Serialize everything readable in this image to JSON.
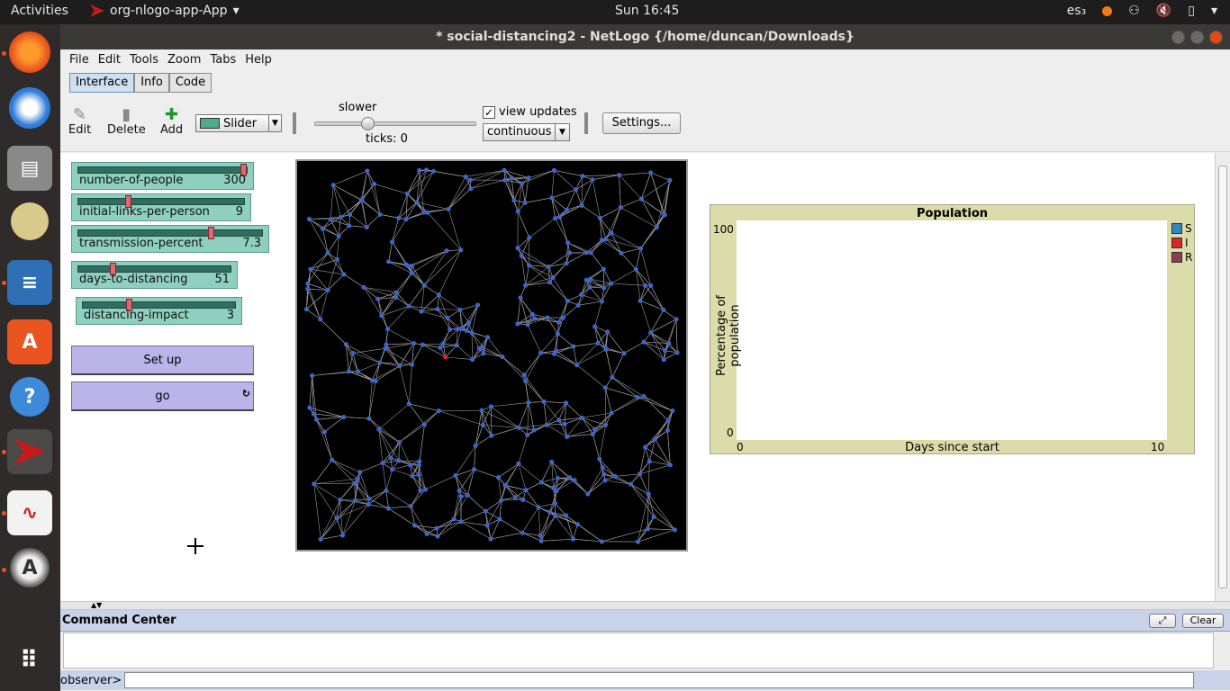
{
  "topbar": {
    "activities": "Activities",
    "app_name": "org-nlogo-app-App",
    "clock": "Sun 16:45",
    "keyboard": "es₃"
  },
  "dock": {
    "icons": [
      "firefox-icon",
      "thunderbird-icon",
      "files-icon",
      "rhythmbox-icon",
      "writer-icon",
      "software-icon",
      "help-icon",
      "netlogo-icon",
      "evince-icon",
      "updater-icon",
      "apps-grid-icon"
    ]
  },
  "window": {
    "title": "* social-distancing2 - NetLogo {/home/duncan/Downloads}"
  },
  "menu": [
    "File",
    "Edit",
    "Tools",
    "Zoom",
    "Tabs",
    "Help"
  ],
  "tabs": [
    "Interface",
    "Info",
    "Code"
  ],
  "toolbar": {
    "edit_label": "Edit",
    "delete_label": "Delete",
    "add_label": "Add",
    "widget_type": "Slider",
    "speed_label": "slower",
    "ticks_label": "ticks: 0",
    "view_updates_label": "view updates",
    "view_updates_checked": true,
    "update_mode": "continuous",
    "settings_label": "Settings..."
  },
  "sliders": [
    {
      "name": "number-of-people",
      "value": "300",
      "fraction": 1.0
    },
    {
      "name": "initial-links-per-person",
      "value": "9",
      "fraction": 0.3
    },
    {
      "name": "transmission-percent",
      "value": "7.3",
      "fraction": 0.73
    },
    {
      "name": "days-to-distancing",
      "value": "51",
      "fraction": 0.22
    },
    {
      "name": "distancing-impact",
      "value": "3",
      "fraction": 0.3
    }
  ],
  "buttons": {
    "setup": "Set up",
    "go": "go"
  },
  "plot": {
    "title": "Population",
    "ylabel": "Percentage of population",
    "xlabel": "Days since start",
    "y_max": "100",
    "y_min": "0",
    "x_min": "0",
    "x_max": "10",
    "legend": [
      {
        "name": "S",
        "color": "#2f86c0"
      },
      {
        "name": "I",
        "color": "#d7262c"
      },
      {
        "name": "R",
        "color": "#8a3f55"
      }
    ]
  },
  "chart_data": {
    "type": "line",
    "title": "Population",
    "xlabel": "Days since start",
    "ylabel": "Percentage of population",
    "xlim": [
      0,
      10
    ],
    "ylim": [
      0,
      100
    ],
    "series": [
      {
        "name": "S",
        "values": []
      },
      {
        "name": "I",
        "values": []
      },
      {
        "name": "R",
        "values": []
      }
    ],
    "legend": "right"
  },
  "world": {
    "background": "#000000",
    "link_color": "#9a9a9a",
    "agent_color": "#3f64c8",
    "infected_color": "#d7262c",
    "agent_count": 300
  },
  "command_center": {
    "title": "Command Center",
    "clear_label": "Clear",
    "prompt": "observer>"
  }
}
